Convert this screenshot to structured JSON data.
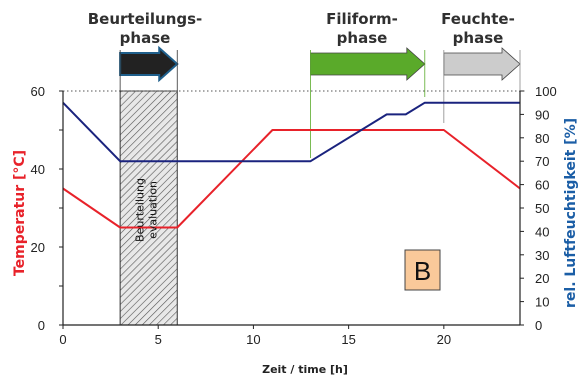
{
  "chart_data": {
    "type": "line",
    "xlabel": "Zeit / time [h]",
    "ylabel_left": "Temperatur [°C]",
    "ylabel_right": "rel. Luftfeuchtigkeit [%]",
    "xlim": [
      0,
      24
    ],
    "ylim_left": [
      0,
      60
    ],
    "ylim_right": [
      0,
      100
    ],
    "x_ticks": [
      0,
      5,
      10,
      15,
      20
    ],
    "y_left_ticks": [
      0,
      20,
      40,
      60
    ],
    "y_right_ticks": [
      0,
      10,
      20,
      30,
      40,
      50,
      60,
      70,
      80,
      90,
      100
    ],
    "series": [
      {
        "axis": "left",
        "color": "#e8222a",
        "x": [
          0,
          3,
          6,
          11,
          20,
          24
        ],
        "y": [
          35,
          25,
          25,
          50,
          50,
          35
        ]
      },
      {
        "axis": "right",
        "color": "#1a237e",
        "x": [
          0,
          3,
          13,
          17,
          18,
          19,
          24
        ],
        "y": [
          95,
          70,
          70,
          90,
          90,
          95,
          95
        ]
      }
    ],
    "phases": [
      {
        "label_line1": "Beurteilungs-",
        "label_line2": "phase",
        "color": "#222222",
        "x_start": 3,
        "x_end": 6
      },
      {
        "label_line1": "Filiform-",
        "label_line2": "phase",
        "color": "#5aaa2a",
        "x_start": 13,
        "x_end": 19
      },
      {
        "label_line1": "Feuchte-",
        "label_line2": "phase",
        "color": "#cccccc",
        "x_start": 20,
        "x_end": 24
      }
    ],
    "evaluation_box": {
      "x_start": 3,
      "x_end": 6,
      "label_line1": "Beurteilung",
      "label_line2": "evaluation"
    },
    "annotation": {
      "text": "B",
      "fill": "#f9c99a"
    },
    "grid": "dotted line at 100% / 60 °C only"
  }
}
